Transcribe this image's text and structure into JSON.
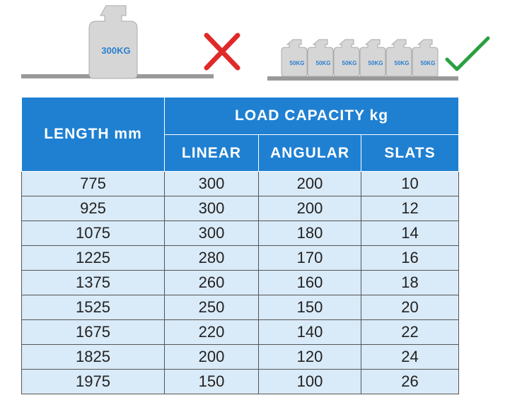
{
  "illustration": {
    "single_weight": "300KG",
    "small_weights": [
      "50KG",
      "50KG",
      "50KG",
      "50KG",
      "50KG",
      "50KG"
    ]
  },
  "table": {
    "header": {
      "length": "LENGTH mm",
      "load_capacity": "LOAD CAPACITY kg",
      "columns": [
        "LINEAR",
        "ANGULAR",
        "SLATS"
      ]
    },
    "rows": [
      [
        775,
        300,
        200,
        10
      ],
      [
        925,
        300,
        200,
        12
      ],
      [
        1075,
        300,
        180,
        14
      ],
      [
        1225,
        280,
        170,
        16
      ],
      [
        1375,
        260,
        160,
        18
      ],
      [
        1525,
        250,
        150,
        20
      ],
      [
        1675,
        220,
        140,
        22
      ],
      [
        1825,
        200,
        120,
        24
      ],
      [
        1975,
        150,
        100,
        26
      ]
    ]
  }
}
